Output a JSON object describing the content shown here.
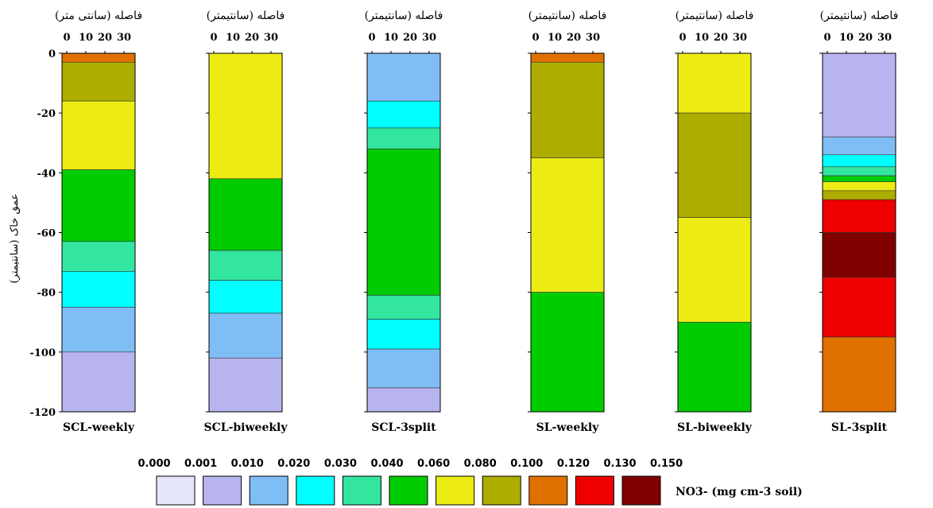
{
  "chart_data": {
    "type": "heatmap",
    "y_axis": {
      "label": "عمق خاک (سانتیمتر)",
      "ticks": [
        0,
        -20,
        -40,
        -60,
        -80,
        -100,
        -120
      ],
      "ylim": [
        -120,
        0
      ]
    },
    "x_axis": {
      "ticks": [
        0,
        10,
        20,
        30
      ]
    },
    "color_scale": {
      "unit": "NO3- (mg cm-3 soil)",
      "levels": [
        "0.000",
        "0.001",
        "0.010",
        "0.020",
        "0.030",
        "0.040",
        "0.060",
        "0.080",
        "0.100",
        "0.120",
        "0.130",
        "0.150"
      ],
      "colors": [
        "#e6e6fa",
        "#b8b4f0",
        "#7fbef5",
        "#00ffff",
        "#33e6a0",
        "#00cc00",
        "#ecec14",
        "#adad00",
        "#e07000",
        "#ee0000",
        "#800000"
      ]
    },
    "panels": [
      {
        "name": "SCL-weekly",
        "top_label": "فاصله (سانتی متر)",
        "bands": [
          {
            "level": 8,
            "top": 0,
            "bottom": -3
          },
          {
            "level": 7,
            "top": -3,
            "bottom": -16
          },
          {
            "level": 6,
            "top": -16,
            "bottom": -39
          },
          {
            "level": 5,
            "top": -39,
            "bottom": -63
          },
          {
            "level": 4,
            "top": -63,
            "bottom": -73
          },
          {
            "level": 3,
            "top": -73,
            "bottom": -85
          },
          {
            "level": 2,
            "top": -85,
            "bottom": -100
          },
          {
            "level": 1,
            "top": -100,
            "bottom": -120
          }
        ]
      },
      {
        "name": "SCL-biweekly",
        "top_label": "فاصله (سانتیمتر)",
        "bands": [
          {
            "level": 6,
            "top": 0,
            "bottom": -42
          },
          {
            "level": 5,
            "top": -42,
            "bottom": -66
          },
          {
            "level": 4,
            "top": -66,
            "bottom": -76
          },
          {
            "level": 3,
            "top": -76,
            "bottom": -87
          },
          {
            "level": 2,
            "top": -87,
            "bottom": -102
          },
          {
            "level": 1,
            "top": -102,
            "bottom": -120
          }
        ]
      },
      {
        "name": "SCL-3split",
        "top_label": "فاصله (سانتیمتر)",
        "bands": [
          {
            "level": 2,
            "top": 0,
            "bottom": -16
          },
          {
            "level": 3,
            "top": -16,
            "bottom": -25
          },
          {
            "level": 4,
            "top": -25,
            "bottom": -32
          },
          {
            "level": 5,
            "top": -32,
            "bottom": -81
          },
          {
            "level": 4,
            "top": -81,
            "bottom": -89
          },
          {
            "level": 3,
            "top": -89,
            "bottom": -99
          },
          {
            "level": 2,
            "top": -99,
            "bottom": -112
          },
          {
            "level": 1,
            "top": -112,
            "bottom": -120
          }
        ]
      },
      {
        "name": "SL-weekly",
        "top_label": "فاصله (سانتیمتر)",
        "bands": [
          {
            "level": 8,
            "top": 0,
            "bottom": -3
          },
          {
            "level": 7,
            "top": -3,
            "bottom": -35
          },
          {
            "level": 6,
            "top": -35,
            "bottom": -80
          },
          {
            "level": 5,
            "top": -80,
            "bottom": -120
          }
        ]
      },
      {
        "name": "SL-biweekly",
        "top_label": "فاصله (سانتیمتر)",
        "bands": [
          {
            "level": 6,
            "top": 0,
            "bottom": -20
          },
          {
            "level": 7,
            "top": -20,
            "bottom": -55
          },
          {
            "level": 6,
            "top": -55,
            "bottom": -90
          },
          {
            "level": 5,
            "top": -90,
            "bottom": -120
          }
        ]
      },
      {
        "name": "SL-3split",
        "top_label": "فاصله (سانتیمتر)",
        "bands": [
          {
            "level": 1,
            "top": 0,
            "bottom": -28
          },
          {
            "level": 2,
            "top": -28,
            "bottom": -34
          },
          {
            "level": 3,
            "top": -34,
            "bottom": -38
          },
          {
            "level": 4,
            "top": -38,
            "bottom": -41
          },
          {
            "level": 5,
            "top": -41,
            "bottom": -43
          },
          {
            "level": 6,
            "top": -43,
            "bottom": -46
          },
          {
            "level": 7,
            "top": -46,
            "bottom": -49
          },
          {
            "level": 9,
            "top": -49,
            "bottom": -60
          },
          {
            "level": 10,
            "top": -60,
            "bottom": -75
          },
          {
            "level": 9,
            "top": -75,
            "bottom": -95
          },
          {
            "level": 8,
            "top": -95,
            "bottom": -120
          }
        ]
      }
    ]
  }
}
